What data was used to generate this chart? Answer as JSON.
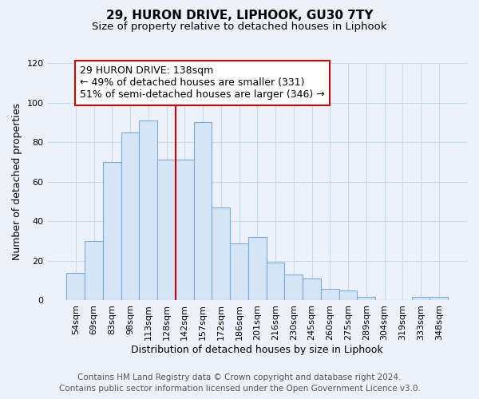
{
  "title": "29, HURON DRIVE, LIPHOOK, GU30 7TY",
  "subtitle": "Size of property relative to detached houses in Liphook",
  "xlabel": "Distribution of detached houses by size in Liphook",
  "ylabel": "Number of detached properties",
  "bar_labels": [
    "54sqm",
    "69sqm",
    "83sqm",
    "98sqm",
    "113sqm",
    "128sqm",
    "142sqm",
    "157sqm",
    "172sqm",
    "186sqm",
    "201sqm",
    "216sqm",
    "230sqm",
    "245sqm",
    "260sqm",
    "275sqm",
    "289sqm",
    "304sqm",
    "319sqm",
    "333sqm",
    "348sqm"
  ],
  "bar_values": [
    14,
    30,
    70,
    85,
    91,
    71,
    71,
    90,
    47,
    29,
    32,
    19,
    13,
    11,
    6,
    5,
    2,
    0,
    0,
    2,
    2
  ],
  "bar_color": "#d6e4f7",
  "bar_edge_color": "#7badd4",
  "ylim": [
    0,
    120
  ],
  "yticks": [
    0,
    20,
    40,
    60,
    80,
    100,
    120
  ],
  "vline_x": 5.5,
  "marker_label_line1": "29 HURON DRIVE: 138sqm",
  "marker_label_line2": "← 49% of detached houses are smaller (331)",
  "marker_label_line3": "51% of semi-detached houses are larger (346) →",
  "vline_color": "#cc0000",
  "annotation_box_color": "#ffffff",
  "annotation_box_edge": "#cc0000",
  "footer_line1": "Contains HM Land Registry data © Crown copyright and database right 2024.",
  "footer_line2": "Contains public sector information licensed under the Open Government Licence v3.0.",
  "background_color": "#edf2fa",
  "grid_color": "#c8d8ee",
  "title_fontsize": 11,
  "subtitle_fontsize": 9.5,
  "axis_label_fontsize": 9,
  "tick_fontsize": 8,
  "annotation_fontsize": 9,
  "footer_fontsize": 7.5
}
